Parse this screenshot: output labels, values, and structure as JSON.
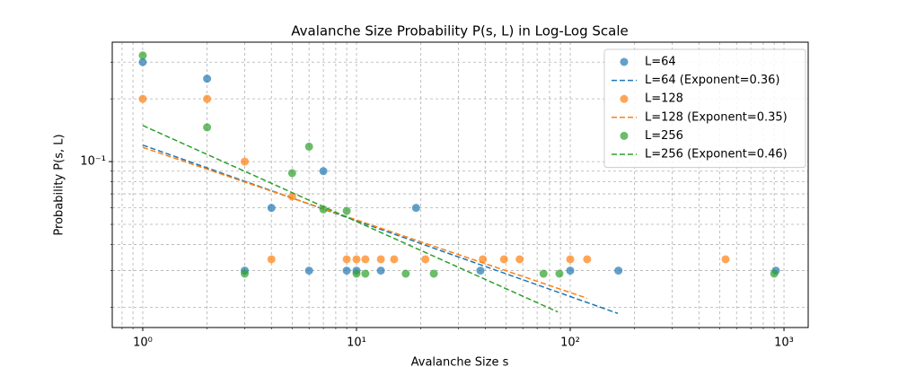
{
  "chart_data": {
    "type": "scatter",
    "title": "Avalanche Size Probability P(s, L) in Log-Log Scale",
    "xlabel": "Avalanche Size s",
    "ylabel": "Probability P(s, L)",
    "xscale": "log",
    "yscale": "log",
    "grid": true,
    "legend": "upper right",
    "xlim": [
      0.72,
      1298
    ],
    "ylim": [
      0.016,
      0.374
    ],
    "xticks": [
      {
        "value": 1,
        "label": "10⁰"
      },
      {
        "value": 10,
        "label": "10¹"
      },
      {
        "value": 100,
        "label": "10²"
      },
      {
        "value": 1000,
        "label": "10³"
      }
    ],
    "xminorticks": [
      0.8,
      0.9,
      2,
      3,
      4,
      5,
      6,
      7,
      8,
      9,
      20,
      30,
      40,
      50,
      60,
      70,
      80,
      90,
      200,
      300,
      400,
      500,
      600,
      700,
      800,
      900
    ],
    "yticks": [
      {
        "value": 0.1,
        "label": "10⁻¹"
      }
    ],
    "yminorticks": [
      0.02,
      0.03,
      0.04,
      0.05,
      0.06,
      0.07,
      0.08,
      0.09,
      0.2,
      0.3
    ],
    "series": [
      {
        "name": "L=64",
        "color": "#1f77b4",
        "style": "markers",
        "x": [
          1,
          2,
          3,
          4,
          6,
          7,
          9,
          10,
          13,
          19,
          38,
          100,
          168,
          916
        ],
        "values": [
          0.3,
          0.25,
          0.03,
          0.06,
          0.03,
          0.09,
          0.03,
          0.03,
          0.03,
          0.06,
          0.03,
          0.03,
          0.03,
          0.03
        ]
      },
      {
        "name": "L=64 (Exponent=0.36)",
        "color": "#1f77b4",
        "style": "dashed",
        "x": [
          1,
          167
        ],
        "values": [
          0.12,
          0.0187
        ]
      },
      {
        "name": "L=128",
        "color": "#ff7f0e",
        "style": "markers",
        "x": [
          1,
          2,
          3,
          4,
          5,
          9,
          10,
          11,
          13,
          15,
          21,
          39,
          49,
          58,
          100,
          120,
          533
        ],
        "values": [
          0.2,
          0.2,
          0.1,
          0.034,
          0.068,
          0.034,
          0.034,
          0.034,
          0.034,
          0.034,
          0.034,
          0.034,
          0.034,
          0.034,
          0.034,
          0.034,
          0.034
        ]
      },
      {
        "name": "L=128 (Exponent=0.35)",
        "color": "#ff7f0e",
        "style": "dashed",
        "x": [
          1,
          120
        ],
        "values": [
          0.117,
          0.0221
        ]
      },
      {
        "name": "L=256",
        "color": "#2ca02c",
        "style": "markers",
        "x": [
          1,
          2,
          3,
          5,
          6,
          7,
          9,
          10,
          11,
          17,
          23,
          75,
          89,
          900
        ],
        "values": [
          0.323,
          0.146,
          0.029,
          0.088,
          0.118,
          0.059,
          0.058,
          0.029,
          0.029,
          0.029,
          0.029,
          0.029,
          0.029,
          0.029
        ]
      },
      {
        "name": "L=256 (Exponent=0.46)",
        "color": "#2ca02c",
        "style": "dashed",
        "x": [
          1,
          87.5
        ],
        "values": [
          0.149,
          0.019
        ]
      }
    ]
  }
}
